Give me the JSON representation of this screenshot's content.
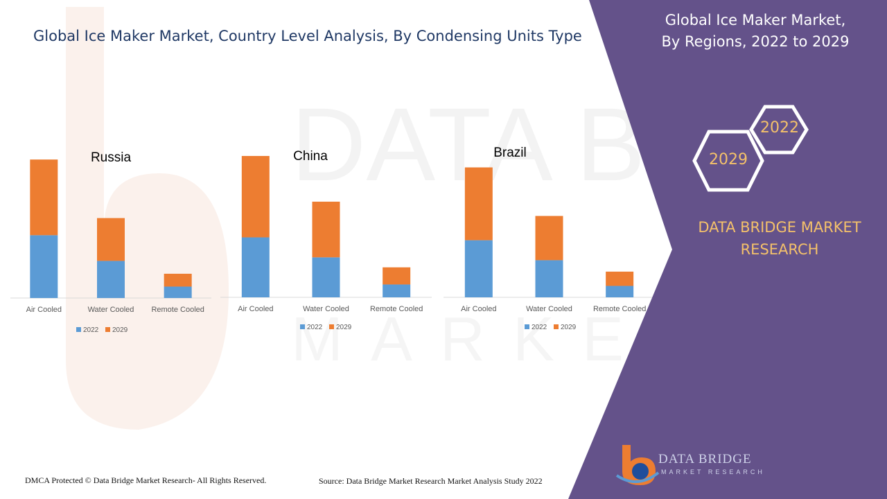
{
  "title": "Global Ice Maker Market, Country Level Analysis, By Condensing Units Type",
  "side_panel": {
    "title_line1": "Global Ice Maker Market,",
    "title_line2": "By Regions, 2022 to 2029",
    "hex_year_a": "2022",
    "hex_year_b": "2029",
    "brand_line1": "DATA BRIDGE MARKET",
    "brand_line2": "RESEARCH"
  },
  "footer": {
    "copyright": "DMCA Protected © Data Bridge Market Research- All Rights Reserved.",
    "source": "Source: Data Bridge Market Research Market Analysis Study 2022"
  },
  "logo": {
    "line1": "DATA BRIDGE",
    "line2": "MARKET RESEARCH"
  },
  "colors": {
    "series_2022": "#5b9bd5",
    "series_2029": "#ed7d31",
    "panel": "#64528a",
    "title": "#1f3864",
    "accent_gold": "#f4c16a"
  },
  "chart_data": [
    {
      "type": "bar",
      "stacked": true,
      "title": "Russia",
      "categories": [
        "Air Cooled",
        "Water Cooled",
        "Remote Cooled"
      ],
      "series": [
        {
          "name": "2022",
          "values": [
            4.4,
            2.6,
            0.8
          ]
        },
        {
          "name": "2029",
          "values": [
            5.3,
            3.0,
            0.9
          ]
        }
      ],
      "ylim": [
        0,
        10
      ],
      "legend": "bottom"
    },
    {
      "type": "bar",
      "stacked": true,
      "title": "China",
      "categories": [
        "Air Cooled",
        "Water Cooled",
        "Remote Cooled"
      ],
      "series": [
        {
          "name": "2022",
          "values": [
            4.2,
            2.8,
            0.9
          ]
        },
        {
          "name": "2029",
          "values": [
            5.7,
            3.9,
            1.2
          ]
        }
      ],
      "ylim": [
        0,
        10
      ],
      "legend": "bottom"
    },
    {
      "type": "bar",
      "stacked": true,
      "title": "Brazil",
      "categories": [
        "Air Cooled",
        "Water Cooled",
        "Remote Cooled"
      ],
      "series": [
        {
          "name": "2022",
          "values": [
            4.0,
            2.6,
            0.8
          ]
        },
        {
          "name": "2029",
          "values": [
            5.1,
            3.1,
            1.0
          ]
        }
      ],
      "ylim": [
        0,
        10
      ],
      "legend": "bottom"
    }
  ]
}
